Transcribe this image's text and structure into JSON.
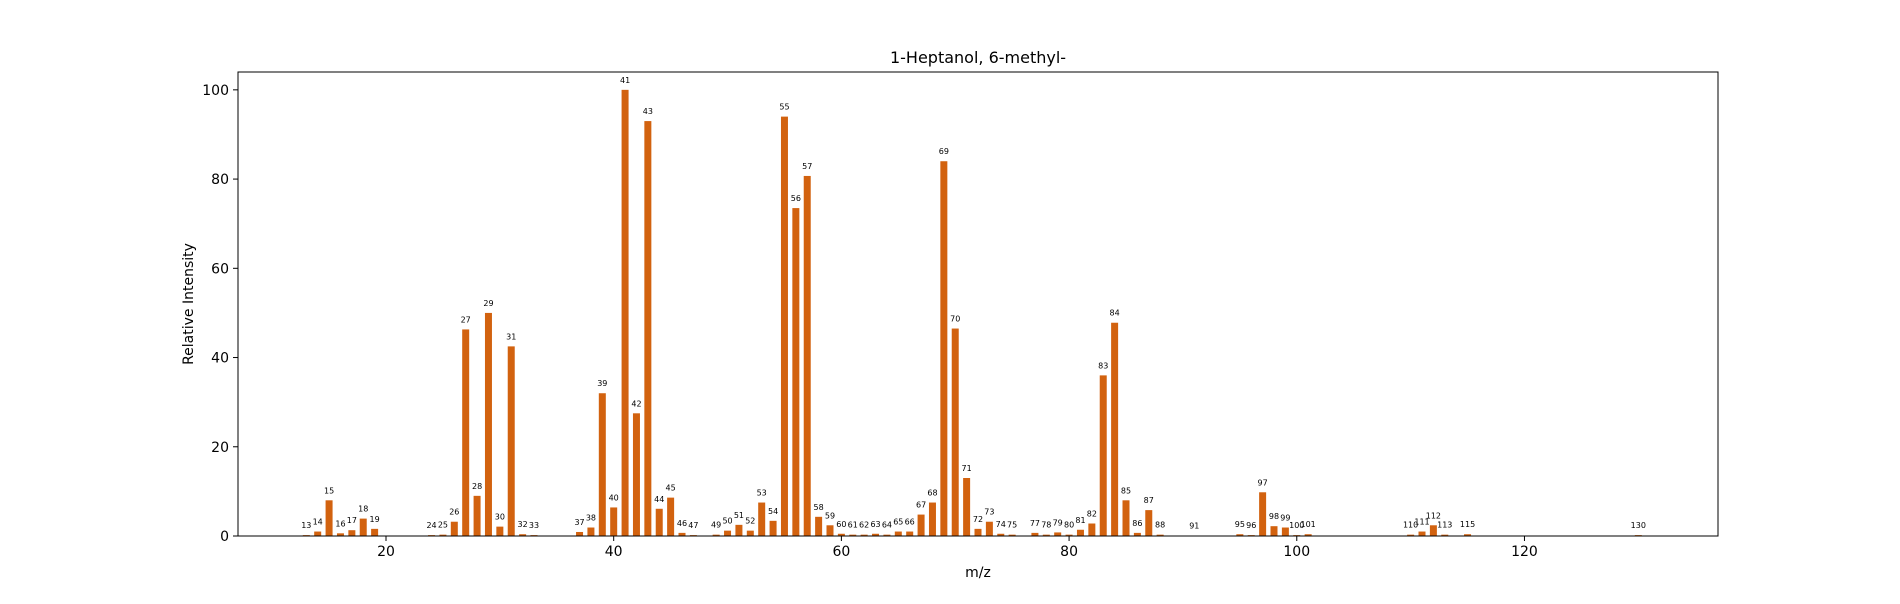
{
  "chart_data": {
    "type": "bar",
    "title": "1-Heptanol, 6-methyl-",
    "xlabel": "m/z",
    "ylabel": "Relative Intensity",
    "xlim": [
      7,
      137
    ],
    "ylim": [
      0,
      104
    ],
    "xticks": [
      20,
      40,
      60,
      80,
      100,
      120
    ],
    "yticks": [
      0,
      20,
      40,
      60,
      80,
      100
    ],
    "grid": false,
    "bar_color": "#d2620f",
    "x": [
      13,
      14,
      15,
      16,
      17,
      18,
      19,
      24,
      25,
      26,
      27,
      28,
      29,
      30,
      31,
      32,
      33,
      37,
      38,
      39,
      40,
      41,
      42,
      43,
      44,
      45,
      46,
      47,
      49,
      50,
      51,
      52,
      53,
      54,
      55,
      56,
      57,
      58,
      59,
      60,
      61,
      62,
      63,
      64,
      65,
      66,
      67,
      68,
      69,
      70,
      71,
      72,
      73,
      74,
      75,
      77,
      78,
      79,
      80,
      81,
      82,
      83,
      84,
      85,
      86,
      87,
      88,
      91,
      95,
      96,
      97,
      98,
      99,
      100,
      101,
      110,
      111,
      112,
      113,
      115,
      130
    ],
    "values": [
      0.2,
      1.0,
      8.0,
      0.6,
      1.3,
      3.9,
      1.6,
      0.2,
      0.3,
      3.2,
      46.3,
      9.0,
      50.0,
      2.1,
      42.5,
      0.4,
      0.2,
      0.9,
      1.9,
      32.0,
      6.4,
      100.0,
      27.5,
      93.0,
      6.1,
      8.6,
      0.7,
      0.2,
      0.3,
      1.2,
      2.5,
      1.2,
      7.5,
      3.4,
      94.0,
      73.5,
      80.7,
      4.3,
      2.4,
      0.5,
      0.3,
      0.3,
      0.5,
      0.3,
      1.0,
      1.0,
      4.8,
      7.5,
      84.0,
      46.5,
      13.0,
      1.6,
      3.2,
      0.5,
      0.3,
      0.7,
      0.3,
      0.8,
      0.3,
      1.4,
      2.8,
      36.0,
      47.8,
      8.0,
      0.7,
      5.8,
      0.3,
      0.1,
      0.4,
      0.2,
      9.8,
      2.2,
      1.9,
      0.2,
      0.4,
      0.3,
      1.0,
      2.4,
      0.3,
      0.4,
      0.2
    ]
  }
}
